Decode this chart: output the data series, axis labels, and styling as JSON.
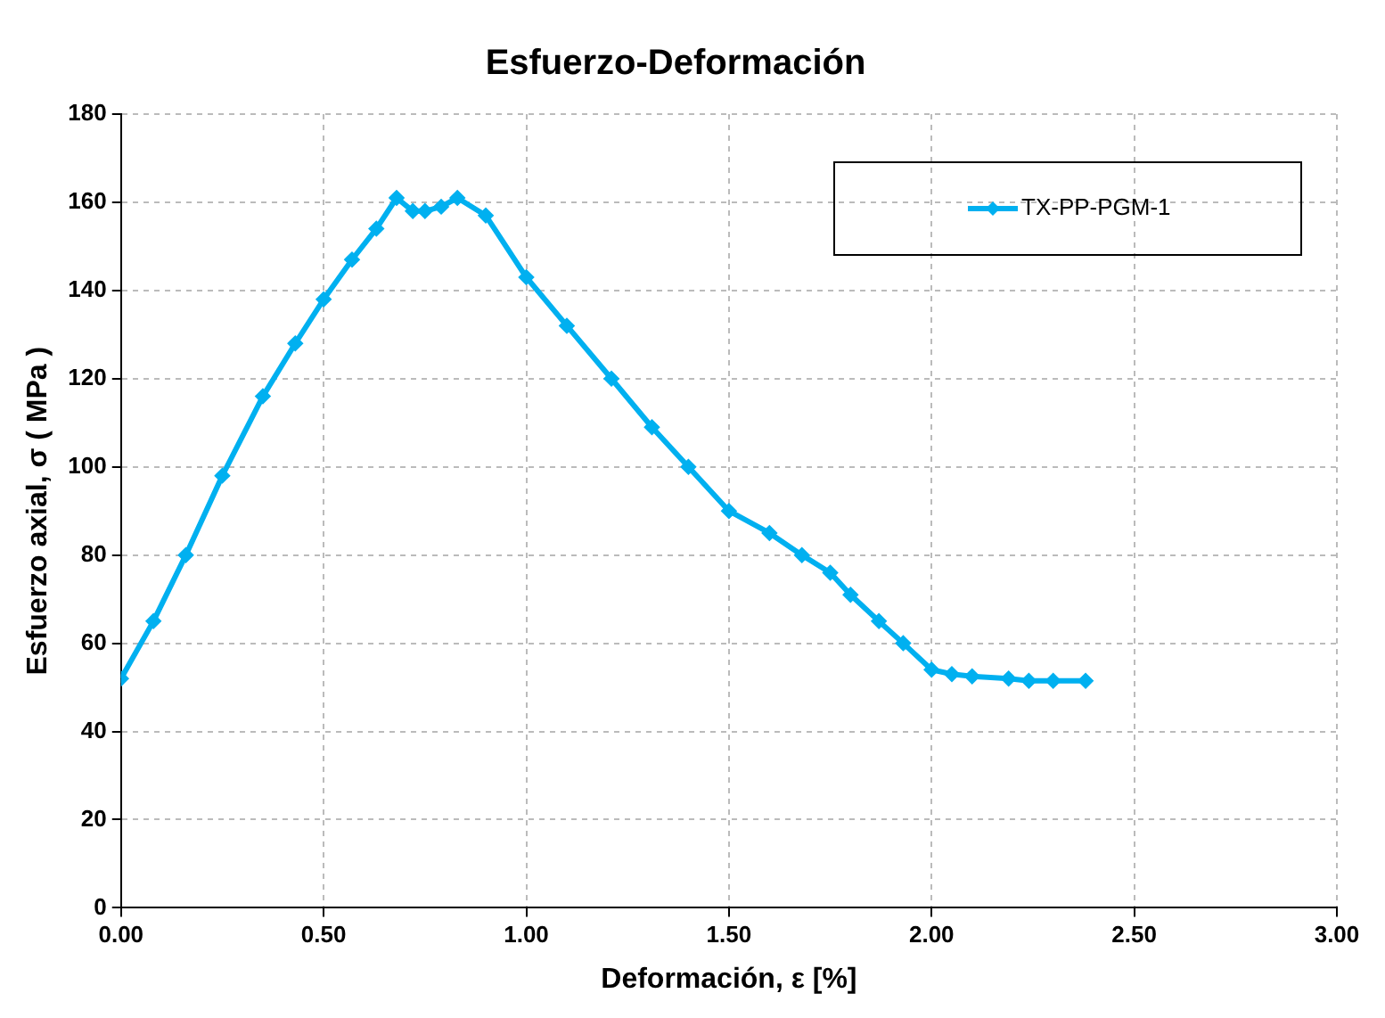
{
  "chart_data": {
    "type": "line",
    "title": "Esfuerzo-Deformación",
    "xlabel": "Deformación, ε [%]",
    "ylabel": "Esfuerzo axial, σ ( MPa )",
    "xlim": [
      0,
      3
    ],
    "xticks": [
      {
        "value": 0,
        "label": "0.00"
      },
      {
        "value": 0.5,
        "label": "0.50"
      },
      {
        "value": 1,
        "label": "1.00"
      },
      {
        "value": 1.5,
        "label": "1.50"
      },
      {
        "value": 2,
        "label": "2.00"
      },
      {
        "value": 2.5,
        "label": "2.50"
      },
      {
        "value": 3,
        "label": "3.00"
      }
    ],
    "ylim": [
      0,
      180
    ],
    "yticks": [
      0,
      20,
      40,
      60,
      80,
      100,
      120,
      140,
      160,
      180
    ],
    "grid": true,
    "legend": "top right",
    "marker": "diamond",
    "line_style": "solid",
    "series": [
      {
        "name": "TX-PP-PGM-1",
        "color": "#00b0f0",
        "x": [
          0,
          0.08,
          0.16,
          0.25,
          0.35,
          0.43,
          0.5,
          0.57,
          0.63,
          0.68,
          0.72,
          0.75,
          0.79,
          0.83,
          0.9,
          1.0,
          1.1,
          1.21,
          1.31,
          1.4,
          1.5,
          1.6,
          1.68,
          1.75,
          1.8,
          1.87,
          1.93,
          2.0,
          2.05,
          2.1,
          2.19,
          2.24,
          2.3,
          2.38
        ],
        "values": [
          52,
          65,
          80,
          98,
          116,
          128,
          138,
          147,
          154,
          161,
          158,
          158,
          159,
          161,
          157,
          143,
          132,
          120,
          109,
          100,
          90,
          85,
          80,
          76,
          71,
          65,
          60,
          54,
          53,
          52.5,
          52,
          51.5,
          51.5,
          51.5
        ]
      }
    ]
  }
}
